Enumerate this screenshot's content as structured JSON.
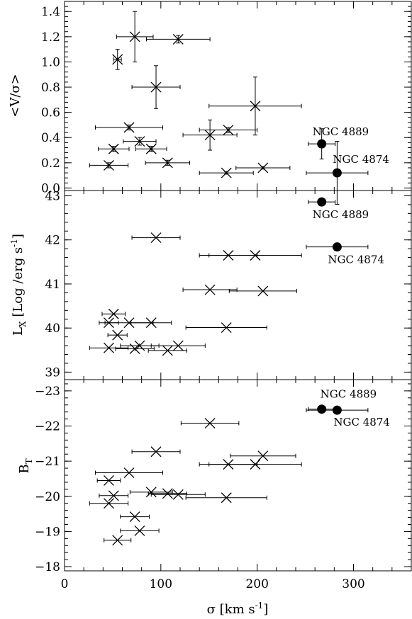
{
  "figure": {
    "xlabel": "σ [km s",
    "xlabel_sup": "-1",
    "xlabel_end": "]"
  },
  "chart_data": [
    {
      "type": "scatter",
      "panel": "top",
      "ylabel": "<V/σ>",
      "xlim": [
        0,
        360
      ],
      "ylim": [
        -0.02,
        1.48
      ],
      "yticks": [
        "0.0",
        "0.2",
        "0.4",
        "0.6",
        "0.8",
        "1.0",
        "1.2",
        "1.4"
      ],
      "ytick_values": [
        0.0,
        0.2,
        0.4,
        0.6,
        0.8,
        1.0,
        1.2,
        1.4
      ],
      "series": [
        {
          "marker": "x",
          "points": [
            {
              "x": 55,
              "y": 1.02,
              "xerr": [
                4,
                4
              ],
              "yerr": [
                0.08,
                0.08
              ]
            },
            {
              "x": 73,
              "y": 1.2,
              "xerr": [
                19,
                19
              ],
              "yerr": [
                0.2,
                0.2
              ]
            },
            {
              "x": 118,
              "y": 1.18,
              "xerr": [
                33,
                33
              ],
              "yerr": [
                0.03,
                0.03
              ]
            },
            {
              "x": 95,
              "y": 0.8,
              "xerr": [
                25,
                25
              ],
              "yerr": [
                0.17,
                0.17
              ]
            },
            {
              "x": 198,
              "y": 0.65,
              "xerr": [
                48,
                48
              ],
              "yerr": [
                0.23,
                0.23
              ]
            },
            {
              "x": 67,
              "y": 0.48,
              "xerr": [
                35,
                35
              ],
              "yerr": [
                0.02,
                0.02
              ]
            },
            {
              "x": 170,
              "y": 0.46,
              "xerr": [
                30,
                30
              ],
              "yerr": [
                0.02,
                0.02
              ]
            },
            {
              "x": 151,
              "y": 0.42,
              "xerr": [
                28,
                28
              ],
              "yerr": [
                0.12,
                0.12
              ]
            },
            {
              "x": 78,
              "y": 0.37,
              "xerr": [
                17,
                17
              ],
              "yerr": [
                0.03,
                0.03
              ]
            },
            {
              "x": 51,
              "y": 0.31,
              "xerr": [
                16,
                16
              ],
              "yerr": [
                0.02,
                0.02
              ]
            },
            {
              "x": 90,
              "y": 0.31,
              "xerr": [
                16,
                16
              ],
              "yerr": [
                0.02,
                0.02
              ]
            },
            {
              "x": 107,
              "y": 0.2,
              "xerr": [
                23,
                23
              ],
              "yerr": [
                0.02,
                0.02
              ]
            },
            {
              "x": 46,
              "y": 0.18,
              "xerr": [
                20,
                20
              ],
              "yerr": [
                0.02,
                0.02
              ]
            },
            {
              "x": 206,
              "y": 0.16,
              "xerr": [
                28,
                28
              ],
              "yerr": [
                0.01,
                0.01
              ]
            },
            {
              "x": 168,
              "y": 0.12,
              "xerr": [
                28,
                28
              ],
              "yerr": [
                0.01,
                0.01
              ]
            }
          ]
        },
        {
          "marker": "filled-circle",
          "points": [
            {
              "x": 267,
              "y": 0.35,
              "xerr": [
                14,
                14
              ],
              "yerr": [
                0.12,
                0.12
              ],
              "label": "NGC 4889"
            },
            {
              "x": 283,
              "y": 0.12,
              "xerr": [
                32,
                32
              ],
              "yerr": [
                0.25,
                0.25
              ],
              "label": "NGC 4874"
            }
          ]
        }
      ]
    },
    {
      "type": "scatter",
      "panel": "middle",
      "ylabel": "L",
      "ylabel_sub": "X",
      "ylabel_rest": " [Log /erg s",
      "ylabel_sup": "-1",
      "ylabel_end": "]",
      "xlim": [
        0,
        360
      ],
      "ylim": [
        38.83,
        43.12
      ],
      "yticks": [
        "39",
        "40",
        "41",
        "42",
        "43"
      ],
      "ytick_values": [
        39,
        40,
        41,
        42,
        43
      ],
      "series": [
        {
          "marker": "x",
          "points": [
            {
              "x": 95,
              "y": 42.05,
              "xerr": [
                25,
                25
              ]
            },
            {
              "x": 170,
              "y": 41.65,
              "xerr": [
                30,
                30
              ]
            },
            {
              "x": 198,
              "y": 41.65,
              "xerr": [
                48,
                48
              ]
            },
            {
              "x": 151,
              "y": 40.87,
              "xerr": [
                28,
                28
              ]
            },
            {
              "x": 206,
              "y": 40.84,
              "xerr": [
                35,
                35
              ]
            },
            {
              "x": 51,
              "y": 40.32,
              "xerr": [
                12,
                12
              ]
            },
            {
              "x": 46,
              "y": 40.12,
              "xerr": [
                10,
                10
              ]
            },
            {
              "x": 67,
              "y": 40.12,
              "xerr": [
                25,
                25
              ]
            },
            {
              "x": 90,
              "y": 40.12,
              "xerr": [
                21,
                21
              ]
            },
            {
              "x": 168,
              "y": 40.01,
              "xerr": [
                42,
                42
              ]
            },
            {
              "x": 55,
              "y": 39.84,
              "xerr": [
                10,
                10
              ]
            },
            {
              "x": 46,
              "y": 39.55,
              "xerr": [
                20,
                20
              ]
            },
            {
              "x": 73,
              "y": 39.53,
              "xerr": [
                20,
                20
              ]
            },
            {
              "x": 78,
              "y": 39.6,
              "xerr": [
                20,
                20
              ]
            },
            {
              "x": 107,
              "y": 39.49,
              "xerr": [
                20,
                20
              ]
            },
            {
              "x": 118,
              "y": 39.6,
              "xerr": [
                28,
                28
              ]
            }
          ]
        },
        {
          "marker": "filled-circle",
          "points": [
            {
              "x": 267,
              "y": 42.86,
              "xerr": [
                14,
                14
              ],
              "label": "NGC 4889"
            },
            {
              "x": 283,
              "y": 41.84,
              "xerr": [
                32,
                32
              ],
              "label": "NGC 4874"
            }
          ]
        }
      ]
    },
    {
      "type": "scatter",
      "panel": "bottom",
      "ylabel": "B",
      "ylabel_sub": "T",
      "xlim": [
        0,
        360
      ],
      "ylim": [
        -17.88,
        -23.32
      ],
      "yticks": [
        "−23",
        "−22",
        "−21",
        "−20",
        "−19",
        "−18"
      ],
      "ytick_values": [
        -23,
        -22,
        -21,
        -20,
        -19,
        -18
      ],
      "xticks": [
        "0",
        "100",
        "200",
        "300"
      ],
      "xtick_values": [
        0,
        100,
        200,
        300
      ],
      "series": [
        {
          "marker": "x",
          "points": [
            {
              "x": 151,
              "y": -22.08,
              "xerr": [
                30,
                30
              ]
            },
            {
              "x": 95,
              "y": -21.27,
              "xerr": [
                25,
                25
              ]
            },
            {
              "x": 206,
              "y": -21.15,
              "xerr": [
                34,
                34
              ]
            },
            {
              "x": 170,
              "y": -20.91,
              "xerr": [
                30,
                30
              ]
            },
            {
              "x": 198,
              "y": -20.91,
              "xerr": [
                48,
                48
              ]
            },
            {
              "x": 67,
              "y": -20.67,
              "xerr": [
                35,
                35
              ]
            },
            {
              "x": 46,
              "y": -20.45,
              "xerr": [
                12,
                12
              ]
            },
            {
              "x": 90,
              "y": -20.12,
              "xerr": [
                22,
                22
              ]
            },
            {
              "x": 107,
              "y": -20.08,
              "xerr": [
                20,
                20
              ]
            },
            {
              "x": 118,
              "y": -20.05,
              "xerr": [
                28,
                28
              ]
            },
            {
              "x": 51,
              "y": -20.02,
              "xerr": [
                15,
                15
              ]
            },
            {
              "x": 168,
              "y": -19.96,
              "xerr": [
                42,
                42
              ]
            },
            {
              "x": 46,
              "y": -19.8,
              "xerr": [
                20,
                20
              ]
            },
            {
              "x": 73,
              "y": -19.42,
              "xerr": [
                15,
                15
              ]
            },
            {
              "x": 78,
              "y": -19.02,
              "xerr": [
                20,
                20
              ]
            },
            {
              "x": 55,
              "y": -18.75,
              "xerr": [
                14,
                14
              ]
            }
          ]
        },
        {
          "marker": "filled-circle",
          "points": [
            {
              "x": 267,
              "y": -22.48,
              "xerr": [
                14,
                14
              ],
              "label": "NGC 4889"
            },
            {
              "x": 283,
              "y": -22.45,
              "xerr": [
                32,
                32
              ],
              "label": "NGC 4874"
            }
          ]
        }
      ]
    }
  ]
}
